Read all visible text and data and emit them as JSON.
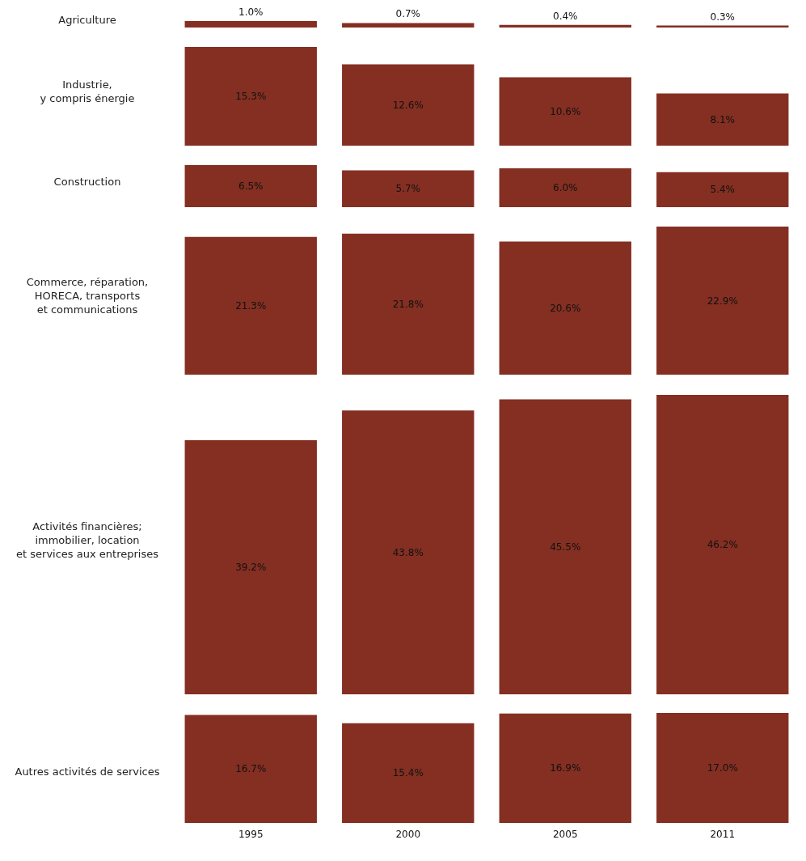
{
  "chart_data": [
    {
      "type": "bar",
      "title": "Agriculture",
      "categories": [
        "1995",
        "2000",
        "2005",
        "2011"
      ],
      "values": [
        1.0,
        0.7,
        0.4,
        0.3
      ],
      "value_labels": [
        "1.0%",
        "0.7%",
        "0.4%",
        "0.3%"
      ],
      "color": "#842f22",
      "tick_labels": false
    },
    {
      "type": "bar",
      "title": "Industrie,\ny compris énergie",
      "categories": [
        "1995",
        "2000",
        "2005",
        "2011"
      ],
      "values": [
        15.3,
        12.6,
        10.6,
        8.1
      ],
      "value_labels": [
        "15.3%",
        "12.6%",
        "10.6%",
        "8.1%"
      ],
      "color": "#842f22",
      "tick_labels": false
    },
    {
      "type": "bar",
      "title": "Construction",
      "categories": [
        "1995",
        "2000",
        "2005",
        "2011"
      ],
      "values": [
        6.5,
        5.7,
        6.0,
        5.4
      ],
      "value_labels": [
        "6.5%",
        "5.7%",
        "6.0%",
        "5.4%"
      ],
      "color": "#842f22",
      "tick_labels": false
    },
    {
      "type": "bar",
      "title": "Commerce, réparation,\nHORECA, transports\net communications",
      "categories": [
        "1995",
        "2000",
        "2005",
        "2011"
      ],
      "values": [
        21.3,
        21.8,
        20.6,
        22.9
      ],
      "value_labels": [
        "21.3%",
        "21.8%",
        "20.6%",
        "22.9%"
      ],
      "color": "#842f22",
      "tick_labels": false
    },
    {
      "type": "bar",
      "title": "Activités financières;\nimmobilier, location\net services aux entreprises",
      "categories": [
        "1995",
        "2000",
        "2005",
        "2011"
      ],
      "values": [
        39.2,
        43.8,
        45.5,
        46.2
      ],
      "value_labels": [
        "39.2%",
        "43.8%",
        "45.5%",
        "46.2%"
      ],
      "color": "#842f22",
      "tick_labels": false
    },
    {
      "type": "bar",
      "title": "Autres activités de services",
      "categories": [
        "1995",
        "2000",
        "2005",
        "2011"
      ],
      "values": [
        16.7,
        15.4,
        16.9,
        17.0
      ],
      "value_labels": [
        "16.7%",
        "15.4%",
        "16.9%",
        "17.0%"
      ],
      "color": "#842f22",
      "tick_labels": "x"
    }
  ]
}
